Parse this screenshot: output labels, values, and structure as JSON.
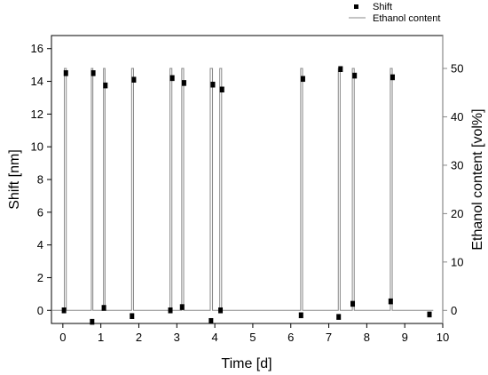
{
  "chart_data": {
    "type": "scatter",
    "legend": {
      "placement": "top-right",
      "entries": [
        {
          "label": "Shift",
          "marker": "square"
        },
        {
          "label": "Ethanol content",
          "marker": "line"
        }
      ]
    },
    "xlabel": "Time [d]",
    "ylabel": "Shift [nm]",
    "y2label": "Ethanol content [vol%]",
    "xlim": [
      -0.3,
      10
    ],
    "ylim": [
      -0.8,
      16.8
    ],
    "y2lim": [
      -2.7,
      56.8
    ],
    "xticks": [
      "0",
      "1",
      "2",
      "3",
      "4",
      "5",
      "6",
      "7",
      "8",
      "9",
      "10"
    ],
    "yticks": [
      "0",
      "2",
      "4",
      "6",
      "8",
      "10",
      "12",
      "14",
      "16"
    ],
    "y2ticks": [
      "0",
      "10",
      "20",
      "30",
      "40",
      "50"
    ],
    "colors": {
      "shift": "#000000",
      "ethanol": "#888888",
      "axis": "#000000",
      "right_axis": "#888888"
    },
    "series": [
      {
        "name": "Shift",
        "axis": "left",
        "x": [
          0.03,
          0.08,
          0.77,
          0.8,
          1.08,
          1.12,
          1.82,
          1.87,
          2.83,
          2.88,
          3.14,
          3.19,
          3.9,
          3.95,
          4.15,
          4.19,
          6.27,
          6.32,
          7.26,
          7.31,
          7.63,
          7.68,
          8.63,
          8.68,
          9.65
        ],
        "y": [
          0.0,
          14.5,
          -0.7,
          14.5,
          0.15,
          13.75,
          -0.35,
          14.1,
          0.0,
          14.2,
          0.2,
          13.9,
          -0.65,
          13.8,
          0.0,
          13.5,
          -0.3,
          14.15,
          -0.4,
          14.75,
          0.4,
          14.35,
          0.55,
          14.25,
          -0.25
        ],
        "errors": 0.15
      },
      {
        "name": "Ethanol content",
        "axis": "right",
        "pulses": [
          [
            0.04,
            0.09
          ],
          [
            0.75,
            0.79
          ],
          [
            1.07,
            1.11
          ],
          [
            1.81,
            1.86
          ],
          [
            2.82,
            2.87
          ],
          [
            3.13,
            3.18
          ],
          [
            3.88,
            3.94
          ],
          [
            4.13,
            4.18
          ],
          [
            6.26,
            6.31
          ],
          [
            7.25,
            7.3
          ],
          [
            7.62,
            7.67
          ],
          [
            8.62,
            8.67
          ]
        ],
        "high": 50,
        "low": 0,
        "x_end": 9.75
      }
    ]
  }
}
